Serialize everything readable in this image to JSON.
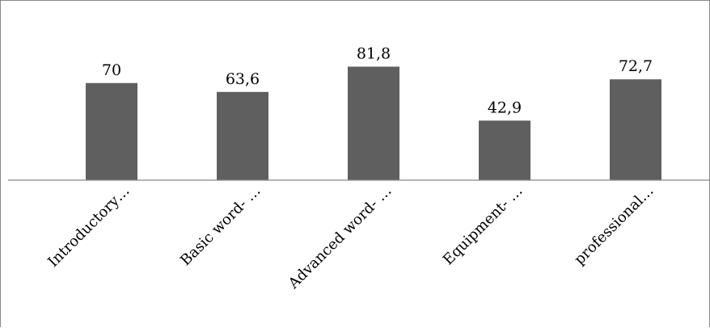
{
  "chart_data": {
    "type": "bar",
    "categories": [
      "Introductory…",
      "Basic word- …",
      "Advanced word- …",
      "Equipment- …",
      "professional…"
    ],
    "values": [
      70,
      63.6,
      81.8,
      42.9,
      72.7
    ],
    "value_labels": [
      "70",
      "63,6",
      "81,8",
      "42,9",
      "72,7"
    ],
    "title": "",
    "xlabel": "",
    "ylabel": "",
    "ylim": [
      0,
      100
    ],
    "grid": false,
    "legend": "none",
    "bar_color": "#5f5f5f",
    "axis_color": "#888888"
  }
}
